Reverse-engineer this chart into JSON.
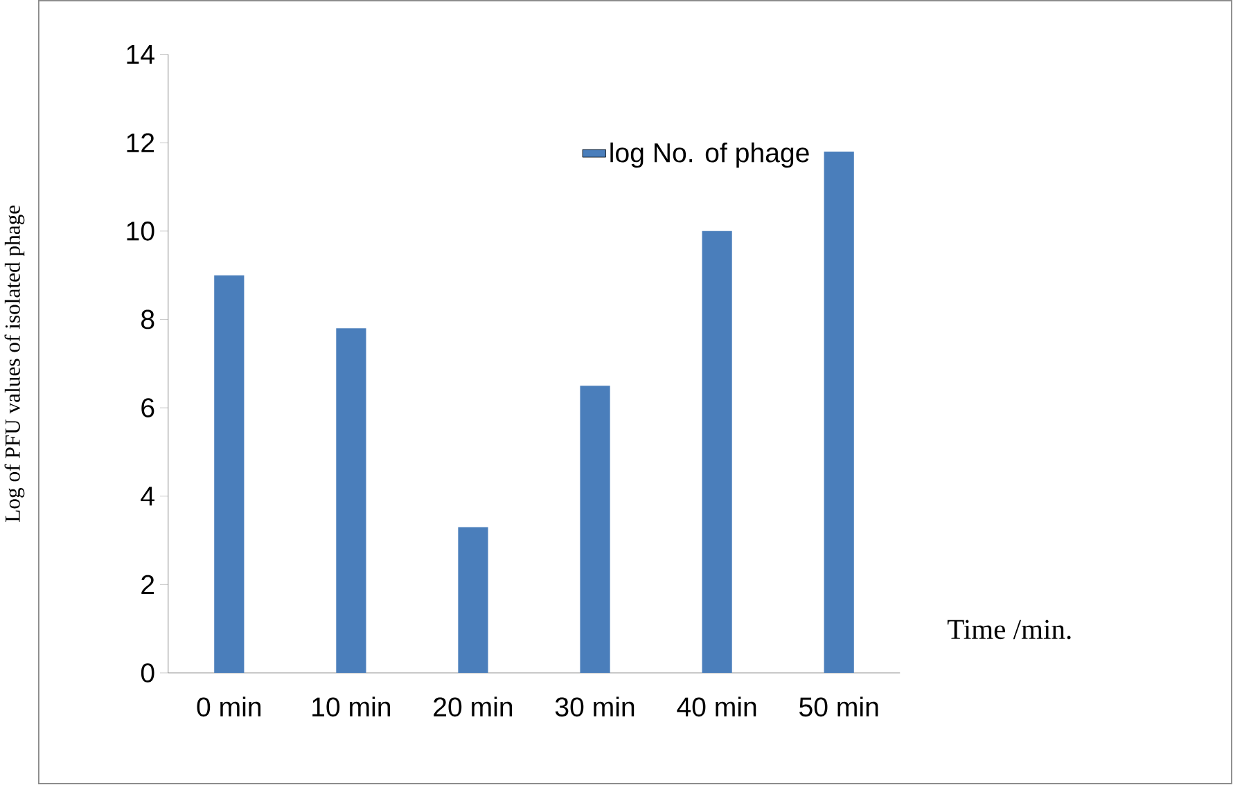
{
  "chart_data": {
    "type": "bar",
    "xlabel": "Time /min.",
    "ylabel": "Log of PFU values of isolated phage",
    "categories": [
      "0  min",
      "10  min",
      "20  min",
      "30  min",
      "40  min",
      "50  min"
    ],
    "series": [
      {
        "name": "log No. of phage",
        "color": "#4a7ebb",
        "values": [
          9,
          7.8,
          3.3,
          6.5,
          10,
          11.8
        ]
      }
    ],
    "ylim": [
      0,
      14
    ],
    "yticks": [
      0,
      2,
      4,
      6,
      8,
      10,
      12,
      14
    ],
    "grid": false,
    "legend": "top right"
  }
}
